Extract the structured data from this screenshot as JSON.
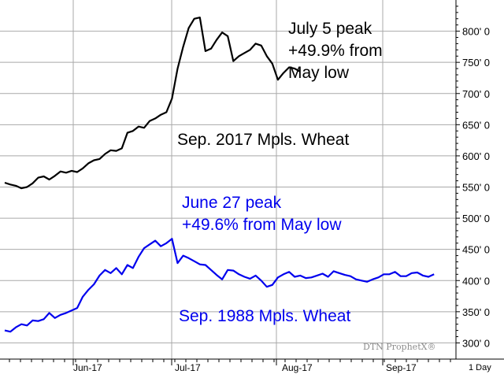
{
  "colors": {
    "series_2017": "#000000",
    "series_1988": "#0000ee",
    "grid": "#a9a9a9",
    "watermark": "#8c8c8c"
  },
  "watermark": "DTN ProphetX®",
  "interval_label": "1 Day",
  "chart_data": {
    "type": "line",
    "title": "",
    "xlabel": "",
    "ylabel": "",
    "ylim": [
      274,
      850
    ],
    "grid": true,
    "y_ticks": [
      "300' 0",
      "350' 0",
      "400' 0",
      "450' 0",
      "500' 0",
      "550' 0",
      "600' 0",
      "650' 0",
      "700' 0",
      "750' 0",
      "800' 0"
    ],
    "y_tick_values": [
      300,
      350,
      400,
      450,
      500,
      550,
      600,
      650,
      700,
      750,
      800
    ],
    "x_tick_labels": [
      "Jun-17",
      "Jul-17",
      "Aug-17",
      "Sep-17"
    ],
    "x_range_days": [
      0,
      80
    ],
    "annotations": [
      {
        "lines": [
          "July 5 peak",
          "+49.9% from",
          "May low"
        ],
        "color": "#000000"
      },
      {
        "lines": [
          "Sep. 2017 Mpls. Wheat"
        ],
        "color": "#000000"
      },
      {
        "lines": [
          "June 27 peak",
          "+49.6% from May low"
        ],
        "color": "#0000ee"
      },
      {
        "lines": [
          "Sep. 1988 Mpls. Wheat"
        ],
        "color": "#0000ee"
      }
    ],
    "series": [
      {
        "name": "Sep. 2017 Mpls. Wheat",
        "color": "#000000",
        "points": [
          [
            0,
            557
          ],
          [
            1,
            554
          ],
          [
            2,
            552
          ],
          [
            3,
            548
          ],
          [
            4,
            550
          ],
          [
            5,
            556
          ],
          [
            6,
            565
          ],
          [
            7,
            567
          ],
          [
            8,
            562
          ],
          [
            9,
            568
          ],
          [
            10,
            575
          ],
          [
            11,
            573
          ],
          [
            12,
            576
          ],
          [
            13,
            574
          ],
          [
            14,
            580
          ],
          [
            15,
            588
          ],
          [
            16,
            593
          ],
          [
            17,
            595
          ],
          [
            18,
            603
          ],
          [
            19,
            609
          ],
          [
            20,
            608
          ],
          [
            21,
            612
          ],
          [
            22,
            637
          ],
          [
            23,
            640
          ],
          [
            24,
            647
          ],
          [
            25,
            645
          ],
          [
            26,
            656
          ],
          [
            27,
            660
          ],
          [
            28,
            666
          ],
          [
            29,
            670
          ],
          [
            30,
            692
          ],
          [
            31,
            740
          ],
          [
            32,
            775
          ],
          [
            33,
            805
          ],
          [
            34,
            820
          ],
          [
            35,
            822
          ],
          [
            36,
            768
          ],
          [
            37,
            772
          ],
          [
            38,
            786
          ],
          [
            39,
            798
          ],
          [
            40,
            792
          ],
          [
            41,
            752
          ],
          [
            42,
            760
          ],
          [
            43,
            765
          ],
          [
            44,
            770
          ],
          [
            45,
            780
          ],
          [
            46,
            777
          ],
          [
            47,
            760
          ],
          [
            48,
            748
          ],
          [
            49,
            722
          ],
          [
            50,
            733
          ],
          [
            51,
            742
          ],
          [
            52,
            740
          ],
          [
            53,
            735
          ]
        ]
      },
      {
        "name": "Sep. 1988 Mpls. Wheat",
        "color": "#0000ee",
        "points": [
          [
            0,
            320
          ],
          [
            1,
            318
          ],
          [
            2,
            325
          ],
          [
            3,
            330
          ],
          [
            4,
            328
          ],
          [
            5,
            336
          ],
          [
            6,
            335
          ],
          [
            7,
            338
          ],
          [
            8,
            348
          ],
          [
            9,
            340
          ],
          [
            10,
            345
          ],
          [
            11,
            348
          ],
          [
            12,
            352
          ],
          [
            13,
            356
          ],
          [
            14,
            374
          ],
          [
            15,
            385
          ],
          [
            16,
            394
          ],
          [
            17,
            408
          ],
          [
            18,
            417
          ],
          [
            19,
            412
          ],
          [
            20,
            420
          ],
          [
            21,
            410
          ],
          [
            22,
            425
          ],
          [
            23,
            420
          ],
          [
            24,
            438
          ],
          [
            25,
            452
          ],
          [
            26,
            458
          ],
          [
            27,
            464
          ],
          [
            28,
            455
          ],
          [
            29,
            460
          ],
          [
            30,
            467
          ],
          [
            31,
            428
          ],
          [
            32,
            440
          ],
          [
            33,
            436
          ],
          [
            34,
            431
          ],
          [
            35,
            426
          ],
          [
            36,
            425
          ],
          [
            37,
            417
          ],
          [
            38,
            409
          ],
          [
            39,
            402
          ],
          [
            40,
            417
          ],
          [
            41,
            416
          ],
          [
            42,
            410
          ],
          [
            43,
            406
          ],
          [
            44,
            403
          ],
          [
            45,
            408
          ],
          [
            46,
            400
          ],
          [
            47,
            390
          ],
          [
            48,
            393
          ],
          [
            49,
            405
          ],
          [
            50,
            410
          ],
          [
            51,
            414
          ],
          [
            52,
            406
          ],
          [
            53,
            408
          ],
          [
            54,
            404
          ],
          [
            55,
            405
          ],
          [
            56,
            408
          ],
          [
            57,
            411
          ],
          [
            58,
            406
          ],
          [
            59,
            415
          ],
          [
            60,
            412
          ],
          [
            61,
            409
          ],
          [
            62,
            407
          ],
          [
            63,
            402
          ],
          [
            64,
            400
          ],
          [
            65,
            398
          ],
          [
            66,
            402
          ],
          [
            67,
            405
          ],
          [
            68,
            410
          ],
          [
            69,
            410
          ],
          [
            70,
            414
          ],
          [
            71,
            407
          ],
          [
            72,
            407
          ],
          [
            73,
            412
          ],
          [
            74,
            413
          ],
          [
            75,
            408
          ],
          [
            76,
            406
          ],
          [
            77,
            410
          ]
        ]
      }
    ]
  }
}
